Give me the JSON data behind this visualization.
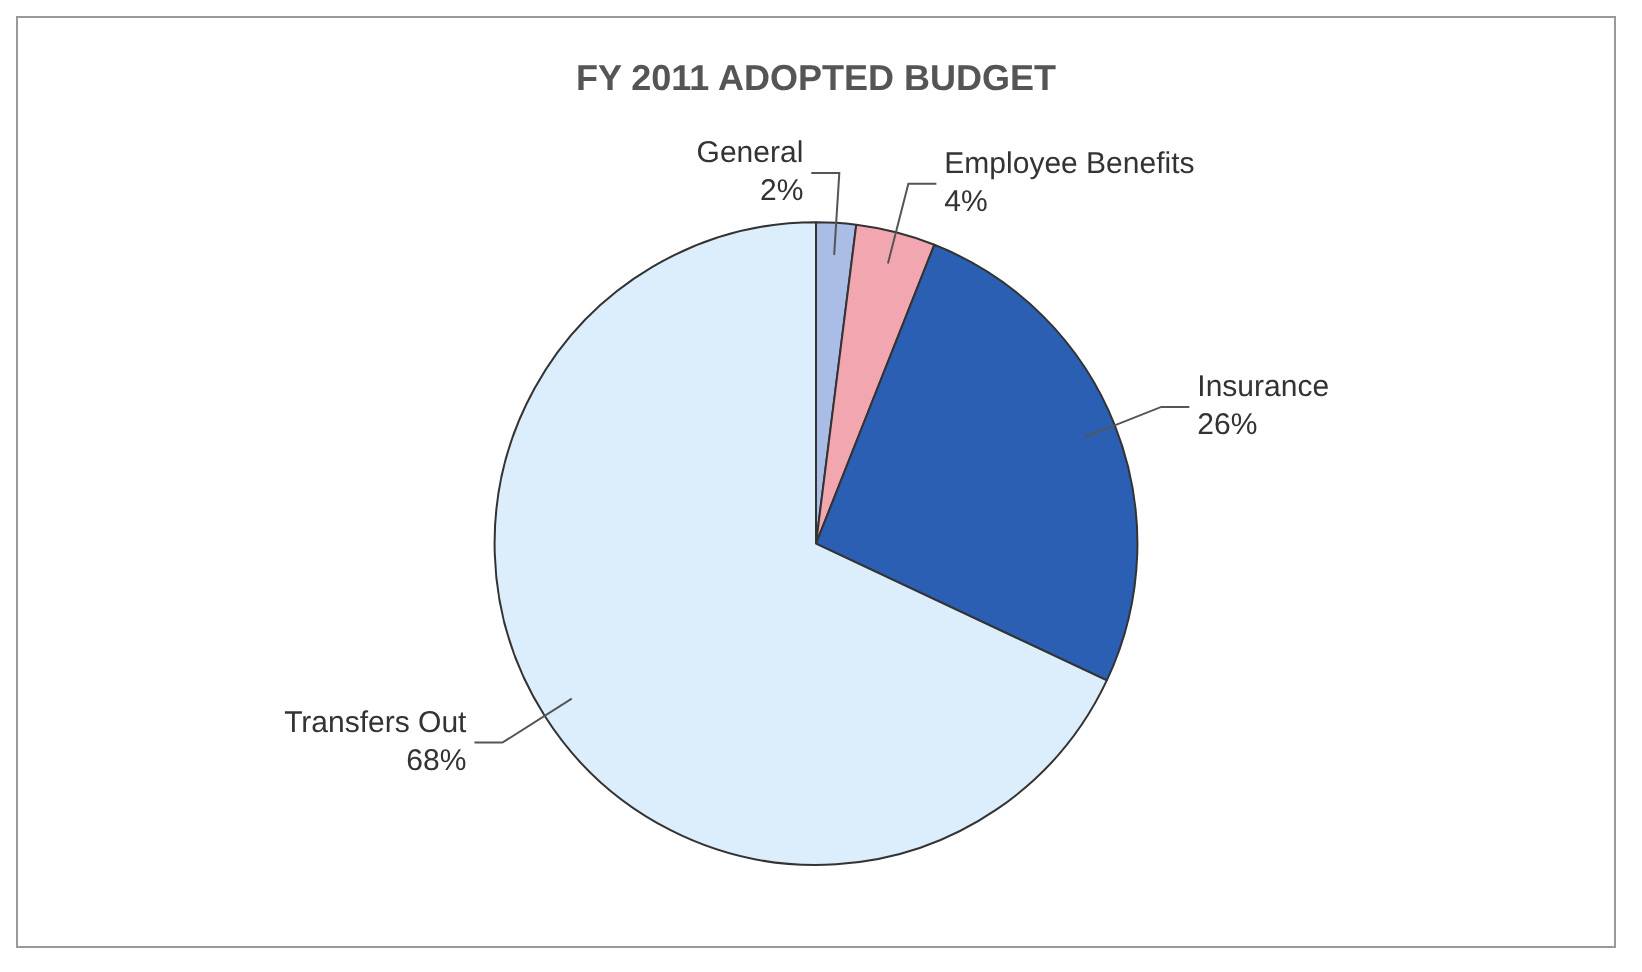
{
  "chart_data": {
    "type": "pie",
    "title": "FY 2011 ADOPTED BUDGET",
    "categories": [
      "General",
      "Employee Benefits",
      "Insurance",
      "Transfers Out"
    ],
    "values": [
      2,
      4,
      26,
      68
    ],
    "colors": [
      "#a9bde6",
      "#f2a7b0",
      "#2b5fb4",
      "#dcedfb"
    ],
    "value_labels": [
      "2%",
      "4%",
      "26%",
      "68%"
    ],
    "legend": false
  }
}
